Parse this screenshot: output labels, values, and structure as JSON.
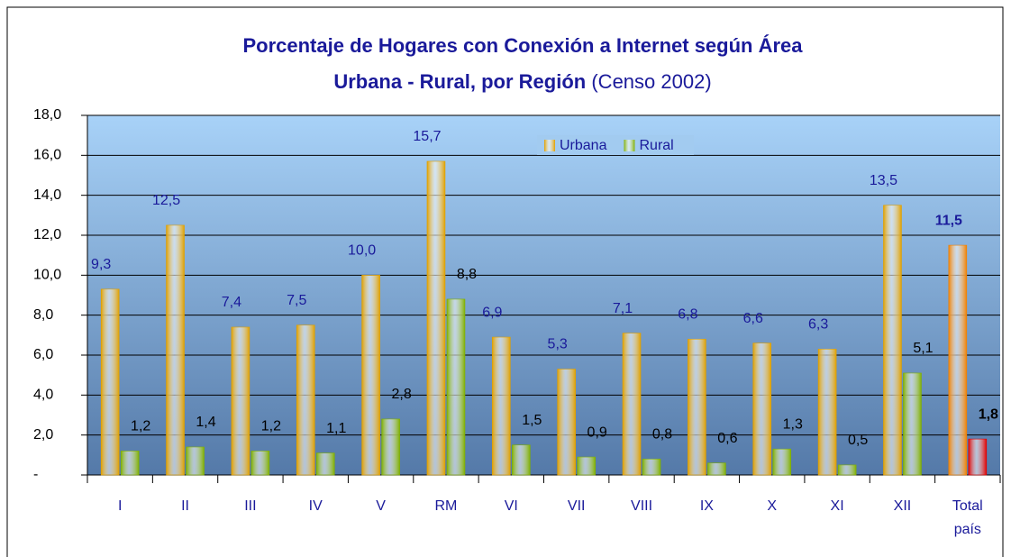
{
  "chart_data": {
    "type": "bar",
    "title": [
      "Porcentaje de Hogares con Conexión a Internet según Área",
      "Urbana - Rural, por Región"
    ],
    "subtitle": "(Censo 2002)",
    "categories": [
      "I",
      "II",
      "III",
      "IV",
      "V",
      "RM",
      "VI",
      "VII",
      "VIII",
      "IX",
      "X",
      "XI",
      "XII",
      "Total país"
    ],
    "series": [
      {
        "name": "Urbana",
        "color": "#e0a000",
        "colors": [
          "#e0a000",
          "#e0a000",
          "#e0a000",
          "#e0a000",
          "#e0a000",
          "#e0a000",
          "#e0a000",
          "#e0a000",
          "#e0a000",
          "#e0a000",
          "#e0a000",
          "#e0a000",
          "#e0a000",
          "#f08000"
        ],
        "values": [
          9.3,
          12.5,
          7.4,
          7.5,
          10.0,
          15.7,
          6.9,
          5.3,
          7.1,
          6.8,
          6.6,
          6.3,
          13.5,
          11.5
        ],
        "value_labels": [
          "9,3",
          "12,5",
          "7,4",
          "7,5",
          "10,0",
          "15,7",
          "6,9",
          "5,3",
          "7,1",
          "6,8",
          "6,6",
          "6,3",
          "13,5",
          "11,5"
        ]
      },
      {
        "name": "Rural",
        "color": "#80b000",
        "colors": [
          "#80b000",
          "#80b000",
          "#80b000",
          "#80b000",
          "#80b000",
          "#80b000",
          "#80b000",
          "#80b000",
          "#80b000",
          "#80b000",
          "#80b000",
          "#80b000",
          "#80b000",
          "#e00000"
        ],
        "values": [
          1.2,
          1.4,
          1.2,
          1.1,
          2.8,
          8.8,
          1.5,
          0.9,
          0.8,
          0.6,
          1.3,
          0.5,
          5.1,
          1.8
        ],
        "value_labels": [
          "1,2",
          "1,4",
          "1,2",
          "1,1",
          "2,8",
          "8,8",
          "1,5",
          "0,9",
          "0,8",
          "0,6",
          "1,3",
          "0,5",
          "5,1",
          "1,8"
        ]
      }
    ],
    "ylim": [
      0,
      18
    ],
    "yticks": [
      {
        "value": 0,
        "label": "-"
      },
      {
        "value": 2,
        "label": "2,0"
      },
      {
        "value": 4,
        "label": "4,0"
      },
      {
        "value": 6,
        "label": "6,0"
      },
      {
        "value": 8,
        "label": "8,0"
      },
      {
        "value": 10,
        "label": "10,0"
      },
      {
        "value": 12,
        "label": "12,0"
      },
      {
        "value": 14,
        "label": "14,0"
      },
      {
        "value": 16,
        "label": "16,0"
      },
      {
        "value": 18,
        "label": "18,0"
      }
    ],
    "grid": true,
    "legend": "top"
  }
}
